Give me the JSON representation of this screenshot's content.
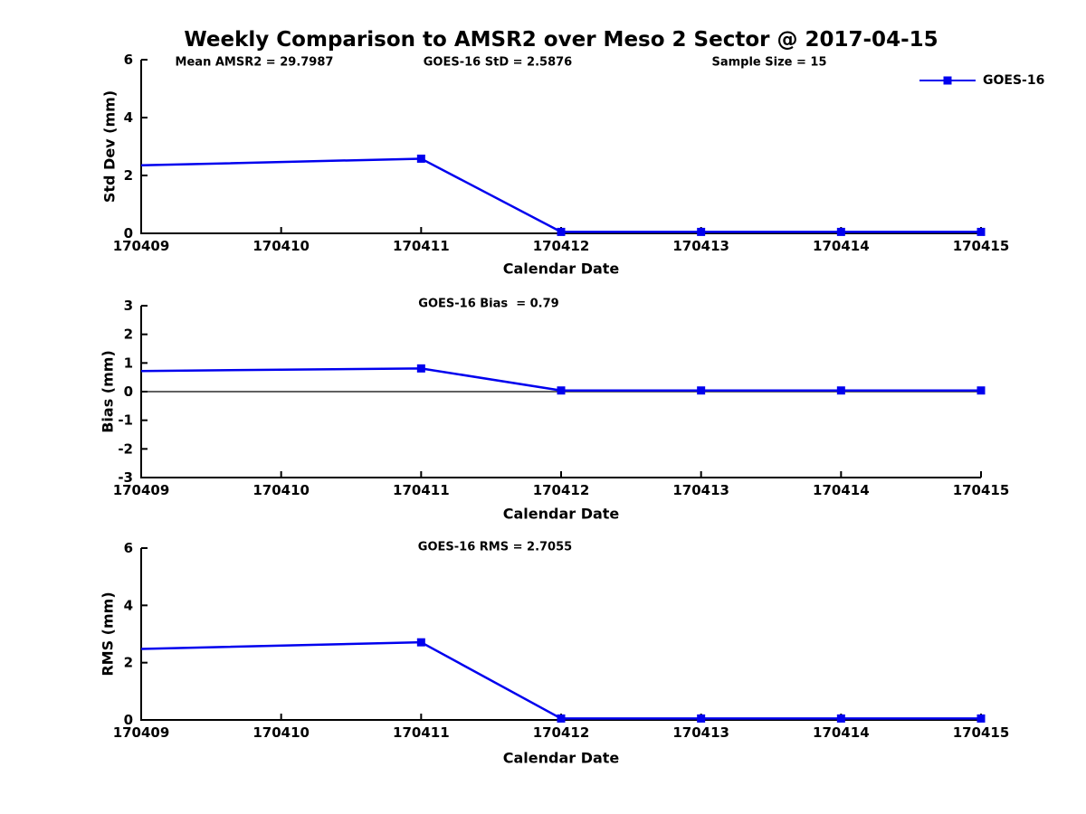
{
  "figure": {
    "title": "Weekly Comparison to AMSR2 over Meso 2 Sector @ 2017-04-15",
    "background_color": "#ffffff",
    "text_color": "#000000"
  },
  "legend": {
    "label": "GOES-16",
    "color": "#0000ee",
    "position": "top-right-outside",
    "marker": "filled-square"
  },
  "chart_data": [
    {
      "type": "line",
      "name": "std-dev",
      "ylabel": "Std Dev (mm)",
      "xlabel": "Calendar Date",
      "ylim": [
        0,
        6
      ],
      "yticks": [
        0,
        2,
        4,
        6
      ],
      "xlim": [
        170409,
        170415
      ],
      "xticks": [
        170409,
        170410,
        170411,
        170412,
        170413,
        170414,
        170415
      ],
      "annotations": [
        "Mean AMSR2 = 29.7987",
        "GOES-16 StD = 2.5876",
        "Sample Size = 15"
      ],
      "grid": false,
      "zero_line": false,
      "series": [
        {
          "name": "GOES-16",
          "color": "#0000ee",
          "x": [
            170409,
            170411,
            170412,
            170413,
            170414,
            170415
          ],
          "y": [
            2.35,
            2.58,
            0.05,
            0.05,
            0.05,
            0.05
          ],
          "markers_at": [
            170411,
            170412,
            170413,
            170414,
            170415
          ]
        }
      ]
    },
    {
      "type": "line",
      "name": "bias",
      "ylabel": "Bias (mm)",
      "xlabel": "Calendar Date",
      "ylim": [
        -3,
        3
      ],
      "yticks": [
        -3,
        -2,
        -1,
        0,
        1,
        2,
        3
      ],
      "xlim": [
        170409,
        170415
      ],
      "xticks": [
        170409,
        170410,
        170411,
        170412,
        170413,
        170414,
        170415
      ],
      "annotations": [
        "GOES-16 Bias  = 0.79"
      ],
      "grid": false,
      "zero_line": true,
      "series": [
        {
          "name": "GOES-16",
          "color": "#0000ee",
          "x": [
            170409,
            170411,
            170412,
            170413,
            170414,
            170415
          ],
          "y": [
            0.72,
            0.81,
            0.04,
            0.04,
            0.04,
            0.04
          ],
          "markers_at": [
            170411,
            170412,
            170413,
            170414,
            170415
          ]
        }
      ]
    },
    {
      "type": "line",
      "name": "rms",
      "ylabel": "RMS (mm)",
      "xlabel": "Calendar Date",
      "ylim": [
        0,
        6
      ],
      "yticks": [
        0,
        2,
        4,
        6
      ],
      "xlim": [
        170409,
        170415
      ],
      "xticks": [
        170409,
        170410,
        170411,
        170412,
        170413,
        170414,
        170415
      ],
      "annotations": [
        "GOES-16 RMS = 2.7055"
      ],
      "grid": false,
      "zero_line": false,
      "series": [
        {
          "name": "GOES-16",
          "color": "#0000ee",
          "x": [
            170409,
            170411,
            170412,
            170413,
            170414,
            170415
          ],
          "y": [
            2.48,
            2.71,
            0.05,
            0.05,
            0.05,
            0.05
          ],
          "markers_at": [
            170411,
            170412,
            170413,
            170414,
            170415
          ]
        }
      ]
    }
  ]
}
